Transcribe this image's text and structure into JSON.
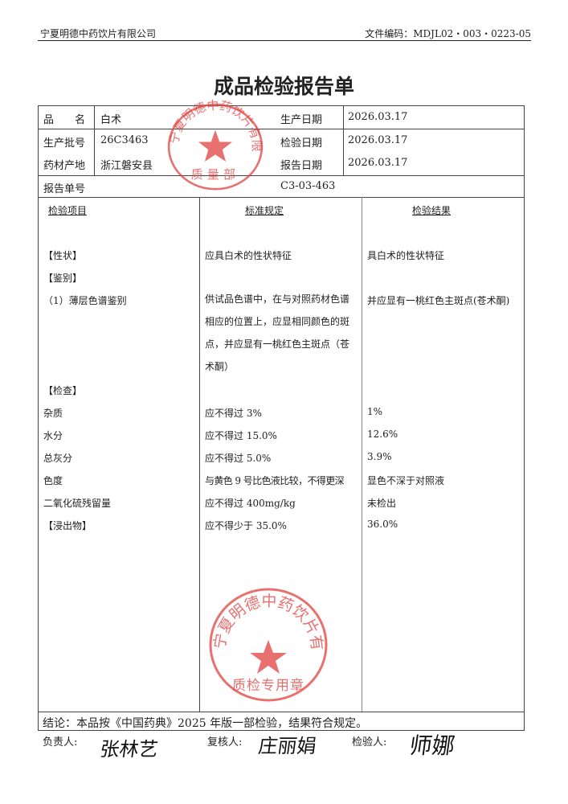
{
  "header": {
    "company": "宁夏明德中药饮片有限公司",
    "doc_code": "文件编码：MDJL02・003・0223-05"
  },
  "title": "成品检验报告单",
  "info": {
    "name_label": "品　　名",
    "name_value": "白术",
    "batch_label": "生产批号",
    "batch_value": "26C3463",
    "origin_label": "药材产地",
    "origin_value": "浙江磐安县",
    "prod_date_label": "生产日期",
    "prod_date_value": "2026.03.17",
    "test_date_label": "检验日期",
    "test_date_value": "2026.03.17",
    "report_date_label": "报告日期",
    "report_date_value": "2026.03.17",
    "report_no_label": "报告单号",
    "report_no_value": "C3-03-463"
  },
  "columns": [
    "检验项目",
    "标准规定",
    "检验结果"
  ],
  "rows": [
    {
      "item": "【性状】",
      "standard": "应具白术的性状特征",
      "result": "具白术的性状特征"
    },
    {
      "item": "【鉴别】",
      "standard": "",
      "result": ""
    },
    {
      "item": "（1）薄层色谱鉴别",
      "standard": "供试品色谱中，在与对照药材色谱相应的位置上，应显相同颜色的斑点，并应显有一桃红色主斑点（苍术酮）",
      "result": "并应显有一桃红色主斑点(苍术酮)"
    },
    {
      "item": "【检查】",
      "standard": "",
      "result": ""
    },
    {
      "item": "杂质",
      "standard": "应不得过 3%",
      "result": "1%"
    },
    {
      "item": "水分",
      "standard": "应不得过 15.0%",
      "result": "12.6%"
    },
    {
      "item": "总灰分",
      "standard": "应不得过 5.0%",
      "result": "3.9%"
    },
    {
      "item": "色度",
      "standard": "与黄色 9 号比色液比较，不得更深",
      "result": "显色不深于对照液"
    },
    {
      "item": "二氧化硫残留量",
      "standard": "应不得过 400mg/kg",
      "result": "未检出"
    },
    {
      "item": "【浸出物】",
      "standard": "应不得少于 35.0%",
      "result": "36.0%"
    }
  ],
  "conclusion": "结论：本品按《中国药典》2025 年版一部检验，结果符合规定。",
  "signatures": {
    "responsible_label": "负责人:",
    "responsible_sig": "张林艺",
    "reviewer_label": "复核人:",
    "reviewer_sig": "庄丽娟",
    "inspector_label": "检验人:",
    "inspector_sig": "师娜"
  },
  "stamps": {
    "top_ring": "宁夏明德中药饮片有限公司",
    "top_center": "质量部",
    "bottom_ring": "宁夏明德中药饮片有限公司",
    "bottom_center": "质检专用章",
    "color": "#e0413f"
  }
}
